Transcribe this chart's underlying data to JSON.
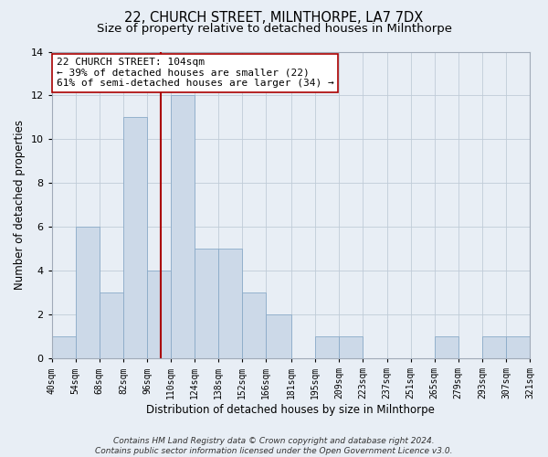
{
  "title": "22, CHURCH STREET, MILNTHORPE, LA7 7DX",
  "subtitle": "Size of property relative to detached houses in Milnthorpe",
  "xlabel": "Distribution of detached houses by size in Milnthorpe",
  "ylabel": "Number of detached properties",
  "bar_edges": [
    40,
    54,
    68,
    82,
    96,
    110,
    124,
    138,
    152,
    166,
    181,
    195,
    209,
    223,
    237,
    251,
    265,
    279,
    293,
    307,
    321
  ],
  "bar_heights": [
    1,
    6,
    3,
    11,
    4,
    12,
    5,
    5,
    3,
    2,
    0,
    1,
    1,
    0,
    0,
    0,
    1,
    0,
    1,
    1
  ],
  "bar_color": "#ccd9e8",
  "bar_edge_color": "#8aaac8",
  "vline_x": 104,
  "vline_color": "#aa0000",
  "ylim": [
    0,
    14
  ],
  "annotation_text": "22 CHURCH STREET: 104sqm\n← 39% of detached houses are smaller (22)\n61% of semi-detached houses are larger (34) →",
  "tick_labels": [
    "40sqm",
    "54sqm",
    "68sqm",
    "82sqm",
    "96sqm",
    "110sqm",
    "124sqm",
    "138sqm",
    "152sqm",
    "166sqm",
    "181sqm",
    "195sqm",
    "209sqm",
    "223sqm",
    "237sqm",
    "251sqm",
    "265sqm",
    "279sqm",
    "293sqm",
    "307sqm",
    "321sqm"
  ],
  "footnote": "Contains HM Land Registry data © Crown copyright and database right 2024.\nContains public sector information licensed under the Open Government Licence v3.0.",
  "bg_color": "#e8eef5",
  "plot_bg_color": "#e8eef5",
  "grid_color": "#c0ccd8",
  "title_fontsize": 10.5,
  "subtitle_fontsize": 9.5,
  "axis_label_fontsize": 8.5,
  "tick_fontsize": 7,
  "annotation_fontsize": 8,
  "footnote_fontsize": 6.5
}
